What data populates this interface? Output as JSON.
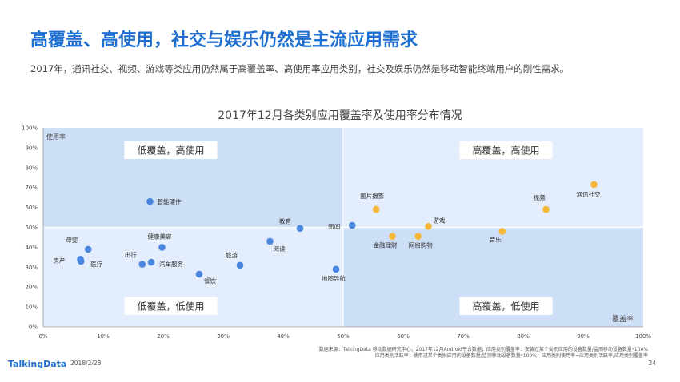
{
  "header": {
    "title": "高覆盖、高使用，社交与娱乐仍然是主流应用需求",
    "subtitle": "2017年，通讯社交、视频、游戏等类应用仍然属于高覆盖率、高使用率应用类别，社交及娱乐仍然是移动智能终端用户的刚性需求。"
  },
  "colors": {
    "title": "#1f6fd0",
    "quadrant_light": "#e3edfb",
    "quadrant_dark": "#cddff7",
    "blue_point": "#4a86dd",
    "orange_point": "#f4b73a"
  },
  "chart_data": {
    "type": "scatter",
    "title": "2017年12月各类别应用覆盖率及使用率分布情况",
    "xlabel": "覆盖率",
    "ylabel": "使用率",
    "xlim": [
      0,
      100
    ],
    "ylim": [
      0,
      100
    ],
    "x_ticks": [
      "0%",
      "10%",
      "20%",
      "30%",
      "40%",
      "50%",
      "60%",
      "70%",
      "80%",
      "90%",
      "100%"
    ],
    "y_ticks": [
      "0%",
      "10%",
      "20%",
      "30%",
      "40%",
      "50%",
      "60%",
      "70%",
      "80%",
      "90%",
      "100%"
    ],
    "quadrant_split": {
      "x": 50,
      "y": 50
    },
    "quadrant_labels": {
      "top_left": "低覆盖，高使用",
      "top_right": "高覆盖，高使用",
      "bottom_left": "低覆盖，低使用",
      "bottom_right": "高覆盖，低使用"
    },
    "points": [
      {
        "label": "智能硬件",
        "x": 17.8,
        "y": 63,
        "group": "blue"
      },
      {
        "label": "母婴",
        "x": 7.5,
        "y": 39,
        "group": "blue"
      },
      {
        "label": "房产",
        "x": 6.2,
        "y": 34,
        "group": "blue"
      },
      {
        "label": "医疗",
        "x": 6.3,
        "y": 33,
        "group": "blue"
      },
      {
        "label": "健康美容",
        "x": 19.8,
        "y": 40,
        "group": "blue"
      },
      {
        "label": "出行",
        "x": 16.5,
        "y": 31.5,
        "group": "blue"
      },
      {
        "label": "汽车服务",
        "x": 18,
        "y": 32.5,
        "group": "blue"
      },
      {
        "label": "餐饮",
        "x": 26,
        "y": 26.5,
        "group": "blue"
      },
      {
        "label": "旅游",
        "x": 32.8,
        "y": 31,
        "group": "blue"
      },
      {
        "label": "阅读",
        "x": 37.8,
        "y": 43,
        "group": "blue"
      },
      {
        "label": "教育",
        "x": 42.8,
        "y": 49.5,
        "group": "blue"
      },
      {
        "label": "新闻",
        "x": 51.5,
        "y": 51,
        "group": "blue"
      },
      {
        "label": "地图导航",
        "x": 48.8,
        "y": 29,
        "group": "blue"
      },
      {
        "label": "图片摄影",
        "x": 55.5,
        "y": 59,
        "group": "orange"
      },
      {
        "label": "金融理财",
        "x": 58.2,
        "y": 45.5,
        "group": "orange"
      },
      {
        "label": "网络购物",
        "x": 62.5,
        "y": 45.5,
        "group": "orange"
      },
      {
        "label": "游戏",
        "x": 64.2,
        "y": 50.5,
        "group": "orange"
      },
      {
        "label": "音乐",
        "x": 76.5,
        "y": 48,
        "group": "orange"
      },
      {
        "label": "视频",
        "x": 83.8,
        "y": 59,
        "group": "orange"
      },
      {
        "label": "通讯社交",
        "x": 91.8,
        "y": 71.5,
        "group": "orange"
      }
    ]
  },
  "footer": {
    "logo": "TalkingData",
    "date": "2018/2/28",
    "page": "24",
    "source_line1": "数据来源：TalkingData 移动数据研究中心，2017年12月Android平台数据；应用类别覆盖率：安装过某个类别应用的设备数量/监测移动设备数量*100%",
    "source_line2": "应用类别活跃率：使用过某个类别应用的设备数量/监测移动设备数量*100%；应用类别使用率=应用类别活跃率/应用类别覆盖率"
  }
}
